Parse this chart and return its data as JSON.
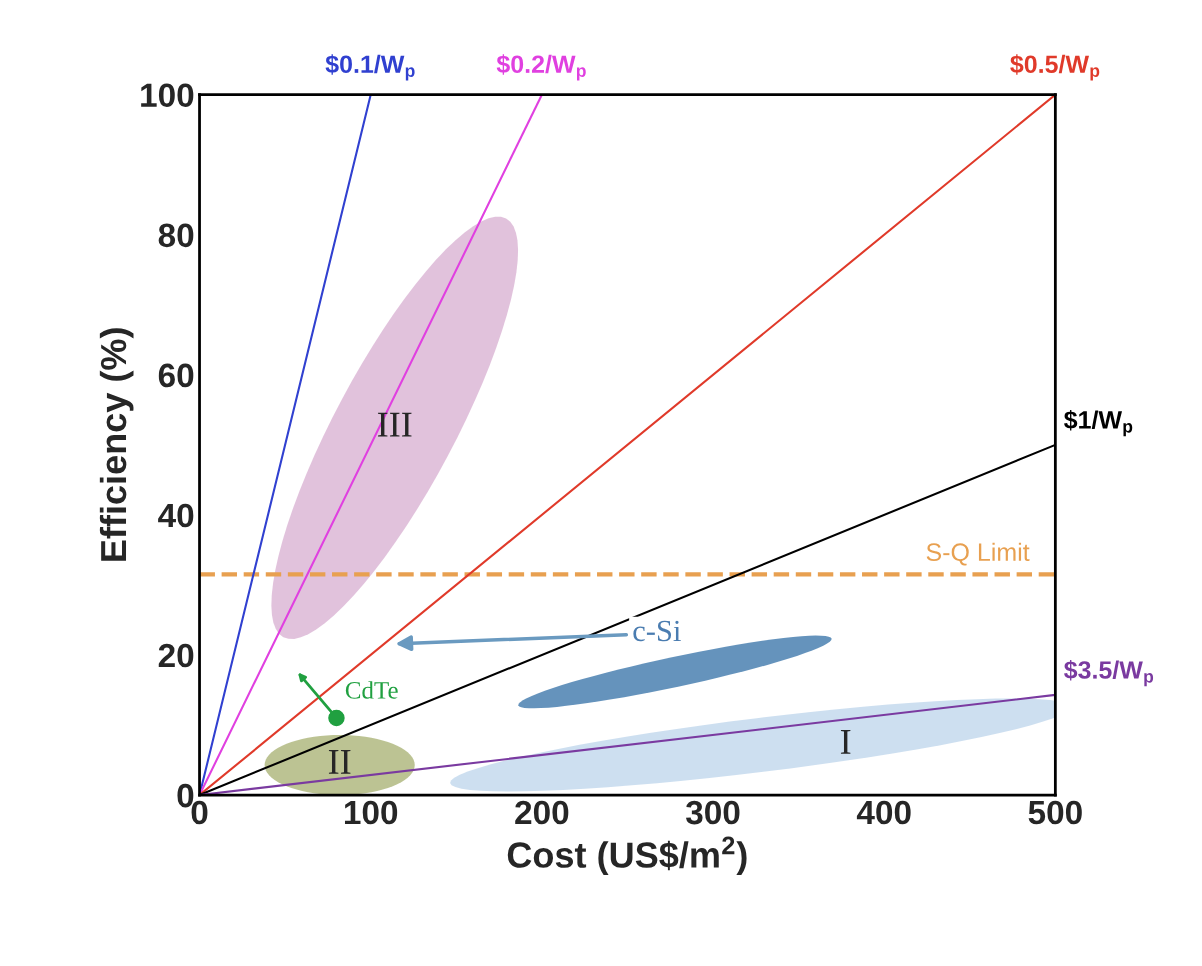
{
  "chart_data": {
    "type": "line",
    "xlabel": "Cost (US$/m$^{2}$)",
    "ylabel": "Efficiency (%)",
    "xlim": [
      0,
      500
    ],
    "ylim": [
      0,
      100
    ],
    "xticks": [
      0,
      100,
      200,
      300,
      400,
      500
    ],
    "yticks": [
      0,
      20,
      40,
      60,
      80,
      100
    ],
    "grid": false,
    "series": [
      {
        "name": "$0.1/W$_{p}$",
        "color": "#3040d0",
        "x": [
          0,
          100
        ],
        "values": [
          0,
          100
        ]
      },
      {
        "name": "$0.2/W$_{p}$",
        "color": "#e040e0",
        "x": [
          0,
          200
        ],
        "values": [
          0,
          100
        ]
      },
      {
        "name": "$0.5/W$_{p}$",
        "color": "#e03a2a",
        "x": [
          0,
          500
        ],
        "values": [
          0,
          100
        ]
      },
      {
        "name": "$1/W$_{p}$",
        "color": "#000000",
        "x": [
          0,
          500
        ],
        "values": [
          0,
          50
        ]
      },
      {
        "name": "$3.5/W$_{p}$",
        "color": "#7a3aa0",
        "x": [
          0,
          500
        ],
        "values": [
          0,
          14.3
        ]
      },
      {
        "type": "scatter",
        "color": "#20a040",
        "x": [
          80
        ],
        "values": [
          11
        ]
      }
    ],
    "ref_lines": [
      {
        "axis": "y",
        "value": 31.5,
        "label": "S-Q Limit",
        "color": "#e8a050",
        "line_style": "dashed"
      }
    ],
    "annotations": [
      "III",
      "II",
      "I",
      "c-Si",
      {
        "text": "CdTe",
        "x": 80,
        "y": 11
      }
    ]
  }
}
